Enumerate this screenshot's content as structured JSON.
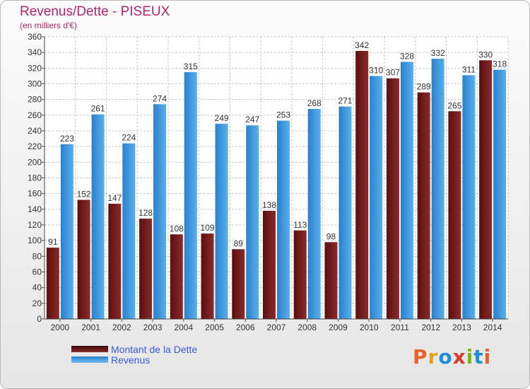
{
  "header": {
    "title": "Revenus/Dette - PISEUX",
    "subtitle": "(en milliers d'€)"
  },
  "legend": [
    {
      "label": "Montant de la Dette",
      "color": "#7a1a1a"
    },
    {
      "label": "Revenus",
      "color": "#3a9ae2"
    }
  ],
  "logo": {
    "text": "Proxiti",
    "colors": [
      "#e8632b",
      "#e0a21a",
      "#1e8fd6",
      "#d93a2a",
      "#7ab51d",
      "#1e8fd6",
      "#e8632b"
    ]
  },
  "colors": {
    "dette_dark": "#5c0f0f",
    "dette_light": "#8a2a2a",
    "revenus_dark": "#2a80cc",
    "revenus_light": "#5ab0ec",
    "grid": "#c8c8c8",
    "axis_text": "#333333"
  },
  "chart_data": {
    "type": "bar",
    "categories": [
      "2000",
      "2001",
      "2002",
      "2003",
      "2004",
      "2005",
      "2006",
      "2007",
      "2008",
      "2009",
      "2010",
      "2011",
      "2012",
      "2013",
      "2014"
    ],
    "series": [
      {
        "name": "Montant de la Dette",
        "values": [
          91,
          152,
          147,
          128,
          108,
          109,
          89,
          138,
          113,
          98,
          342,
          307,
          289,
          265,
          330
        ]
      },
      {
        "name": "Revenus",
        "values": [
          223,
          261,
          224,
          274,
          315,
          249,
          247,
          253,
          268,
          271,
          310,
          328,
          332,
          311,
          318
        ]
      }
    ],
    "ylim": [
      0,
      360
    ],
    "ytick_step": 20,
    "grid": true,
    "legend_position": "bottom-left"
  }
}
